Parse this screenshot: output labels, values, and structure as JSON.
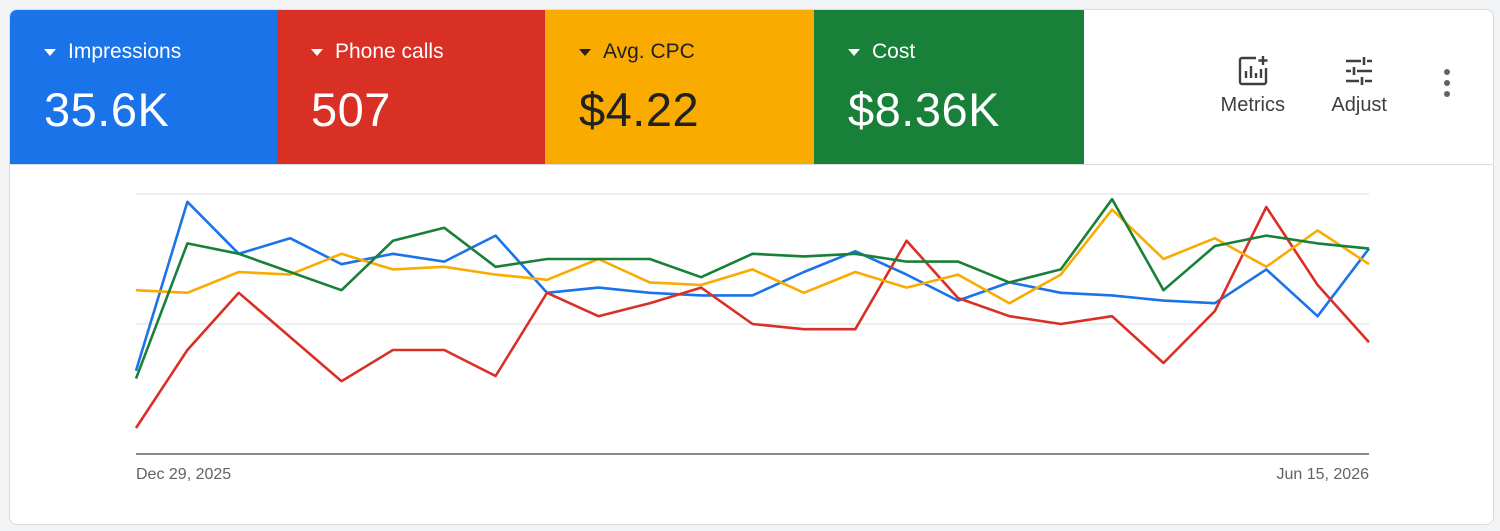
{
  "metrics": [
    {
      "id": "impressions",
      "label": "Impressions",
      "value": "35.6K",
      "bg": "#1a73e8",
      "fg": "#ffffff"
    },
    {
      "id": "phone-calls",
      "label": "Phone calls",
      "value": "507",
      "bg": "#d93025",
      "fg": "#ffffff"
    },
    {
      "id": "avg-cpc",
      "label": "Avg. CPC",
      "value": "$4.22",
      "bg": "#f9ab00",
      "fg": "#202124"
    },
    {
      "id": "cost",
      "label": "Cost",
      "value": "$8.36K",
      "bg": "#188038",
      "fg": "#ffffff"
    }
  ],
  "toolbar": {
    "metrics_label": "Metrics",
    "metrics_icon": "add-chart-icon",
    "adjust_label": "Adjust",
    "adjust_icon": "tune-sliders-icon",
    "more_icon": "more-vert-icon"
  },
  "chart_data": {
    "type": "line",
    "x_start_label": "Dec 29, 2025",
    "x_end_label": "Jun 15, 2026",
    "xlabel": "",
    "ylabel": "",
    "ylim": [
      0,
      100
    ],
    "grid": true,
    "series": [
      {
        "color": "#1a73e8",
        "values": [
          32,
          97,
          77,
          83,
          73,
          77,
          74,
          84,
          62,
          64,
          62,
          61,
          61,
          70,
          78,
          69,
          59,
          66,
          62,
          61,
          59,
          58,
          71,
          53,
          79
        ]
      },
      {
        "color": "#d93025",
        "values": [
          10,
          40,
          62,
          45,
          28,
          40,
          40,
          30,
          62,
          53,
          58,
          64,
          50,
          48,
          48,
          82,
          60,
          53,
          50,
          53,
          35,
          55,
          95,
          65,
          43
        ]
      },
      {
        "color": "#f9ab00",
        "values": [
          63,
          62,
          70,
          69,
          77,
          71,
          72,
          69,
          67,
          75,
          66,
          65,
          71,
          62,
          70,
          64,
          69,
          58,
          69,
          94,
          75,
          83,
          72,
          86,
          73
        ]
      },
      {
        "color": "#188038",
        "values": [
          29,
          81,
          77,
          70,
          63,
          82,
          87,
          72,
          75,
          75,
          75,
          68,
          77,
          76,
          77,
          74,
          74,
          66,
          71,
          98,
          63,
          80,
          84,
          81,
          79
        ]
      }
    ]
  }
}
